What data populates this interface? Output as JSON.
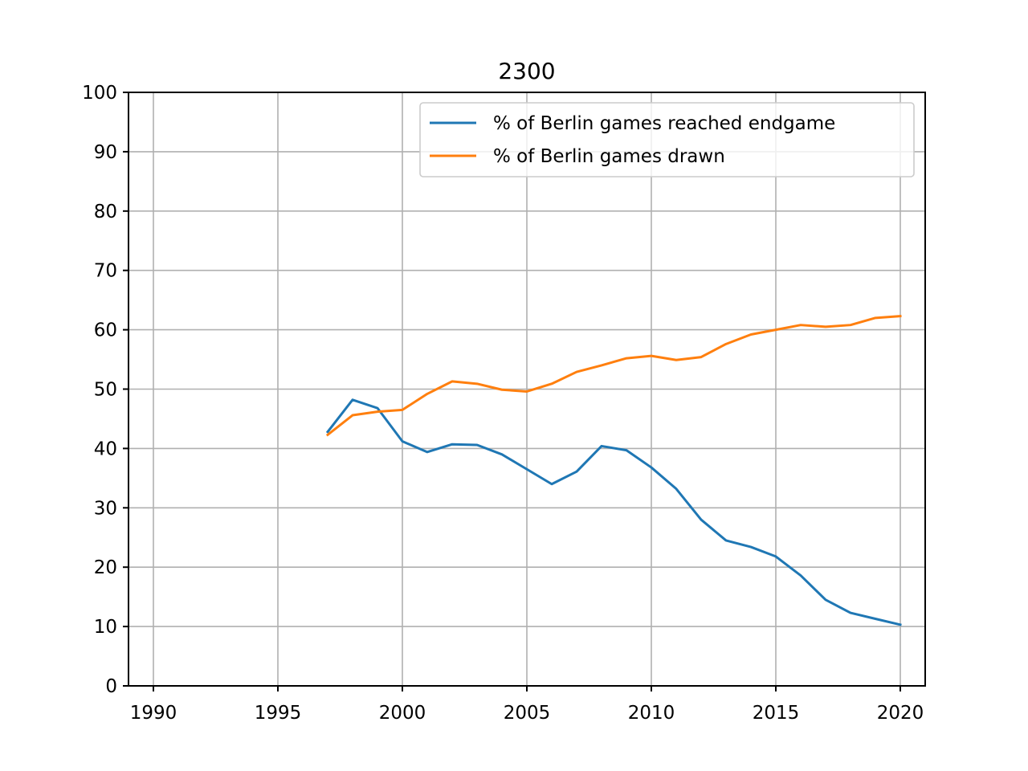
{
  "chart_data": {
    "type": "line",
    "title": "2300",
    "xlabel": "",
    "ylabel": "",
    "xlim": [
      1989,
      2021
    ],
    "ylim": [
      0,
      100
    ],
    "x_ticks": [
      1990,
      1995,
      2000,
      2005,
      2010,
      2015,
      2020
    ],
    "y_ticks": [
      0,
      10,
      20,
      30,
      40,
      50,
      60,
      70,
      80,
      90,
      100
    ],
    "grid": true,
    "legend_position": "top-right",
    "x": [
      1997,
      1998,
      1999,
      2000,
      2001,
      2002,
      2003,
      2004,
      2005,
      2006,
      2007,
      2008,
      2009,
      2010,
      2011,
      2012,
      2013,
      2014,
      2015,
      2016,
      2017,
      2018,
      2019,
      2020
    ],
    "series": [
      {
        "name": "% of Berlin games reached endgame",
        "color": "#1f77b4",
        "values": [
          42.8,
          48.2,
          46.8,
          41.2,
          39.4,
          40.7,
          40.6,
          39.0,
          36.5,
          34.0,
          36.1,
          40.4,
          39.7,
          36.8,
          33.2,
          28.0,
          24.5,
          23.4,
          21.8,
          18.6,
          14.5,
          12.3,
          11.3,
          10.3
        ]
      },
      {
        "name": "% of Berlin games drawn",
        "color": "#ff7f0e",
        "values": [
          42.3,
          45.6,
          46.2,
          46.5,
          49.2,
          51.3,
          50.9,
          49.9,
          49.6,
          50.9,
          52.9,
          54.0,
          55.2,
          55.6,
          54.9,
          55.4,
          57.6,
          59.2,
          60.0,
          60.8,
          60.5,
          60.8,
          62.0,
          62.3
        ]
      }
    ]
  }
}
